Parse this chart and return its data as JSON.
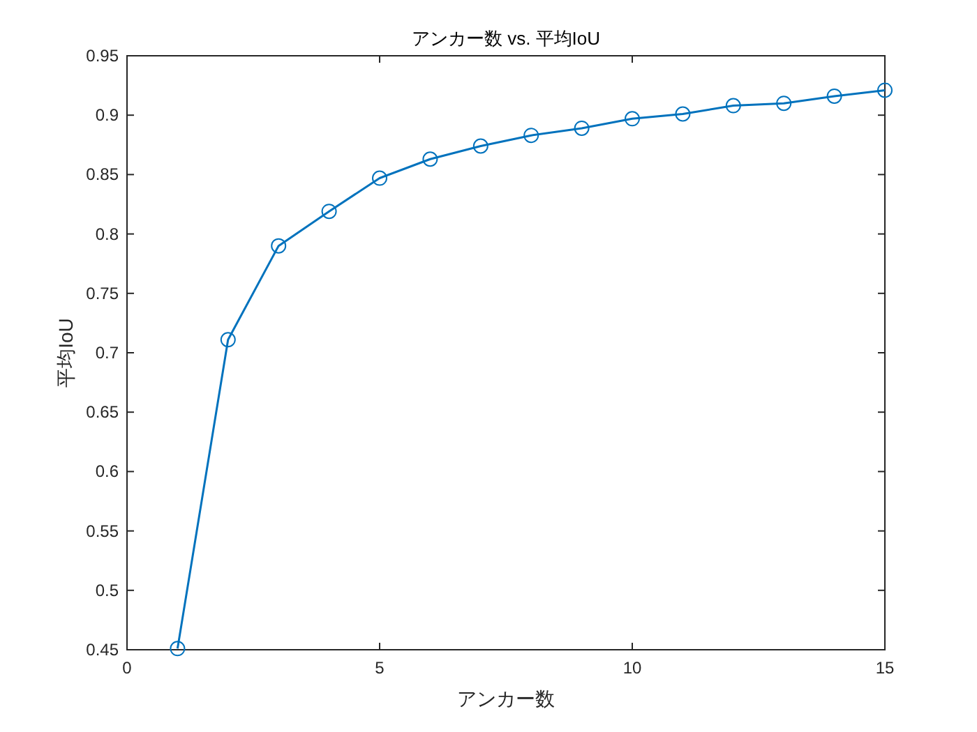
{
  "chart_data": {
    "type": "line",
    "title": "アンカー数 vs. 平均IoU",
    "xlabel": "アンカー数",
    "ylabel": "平均IoU",
    "x": [
      1,
      2,
      3,
      4,
      5,
      6,
      7,
      8,
      9,
      10,
      11,
      12,
      13,
      14,
      15
    ],
    "series": [
      {
        "color": "#0072bd",
        "values": [
          0.451,
          0.711,
          0.79,
          0.819,
          0.847,
          0.863,
          0.874,
          0.883,
          0.889,
          0.897,
          0.901,
          0.908,
          0.91,
          0.916,
          0.921
        ]
      }
    ],
    "xlim": [
      0,
      15
    ],
    "ylim": [
      0.45,
      0.95
    ],
    "xticks": [
      0,
      5,
      10,
      15
    ],
    "yticks": [
      0.45,
      0.5,
      0.55,
      0.6,
      0.65,
      0.7,
      0.75,
      0.8,
      0.85,
      0.9,
      0.95
    ],
    "marker": "circle",
    "line_style": "solid"
  }
}
